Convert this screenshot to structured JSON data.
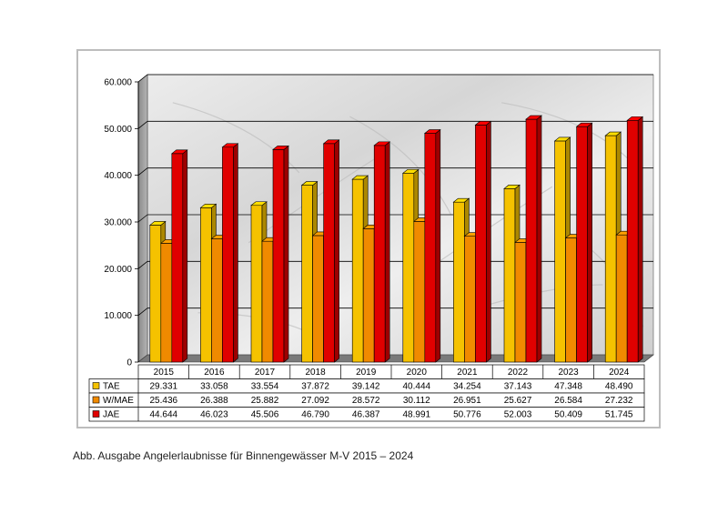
{
  "caption": "Abb. Ausgabe Angelerlaubnisse für Binnengewässer M-V 2015 – 2024",
  "chart_data": {
    "type": "bar",
    "title": "",
    "xlabel": "",
    "ylabel": "",
    "ylim": [
      0,
      60000
    ],
    "y_ticks": [
      0,
      10000,
      20000,
      30000,
      40000,
      50000,
      60000
    ],
    "y_tick_labels": [
      "0",
      "10.000",
      "20.000",
      "30.000",
      "40.000",
      "50.000",
      "60.000"
    ],
    "grid": true,
    "legend": "data-table",
    "categories": [
      "2015",
      "2016",
      "2017",
      "2018",
      "2019",
      "2020",
      "2021",
      "2022",
      "2023",
      "2024"
    ],
    "series": [
      {
        "name": "TAE",
        "color": "#f5c200",
        "values": [
          29331,
          33058,
          33554,
          37872,
          39142,
          40444,
          34254,
          37143,
          47348,
          48490
        ],
        "labels": [
          "29.331",
          "33.058",
          "33.554",
          "37.872",
          "39.142",
          "40.444",
          "34.254",
          "37.143",
          "47.348",
          "48.490"
        ]
      },
      {
        "name": "W/MAE",
        "color": "#f08a00",
        "values": [
          25436,
          26388,
          25882,
          27092,
          28572,
          30112,
          26951,
          25627,
          26584,
          27232
        ],
        "labels": [
          "25.436",
          "26.388",
          "25.882",
          "27.092",
          "28.572",
          "30.112",
          "26.951",
          "25.627",
          "26.584",
          "27.232"
        ]
      },
      {
        "name": "JAE",
        "color": "#e00000",
        "values": [
          44644,
          46023,
          45506,
          46790,
          46387,
          48991,
          50776,
          52003,
          50409,
          51745
        ],
        "labels": [
          "44.644",
          "46.023",
          "45.506",
          "46.790",
          "46.387",
          "48.991",
          "50.776",
          "52.003",
          "50.409",
          "51.745"
        ]
      }
    ]
  }
}
